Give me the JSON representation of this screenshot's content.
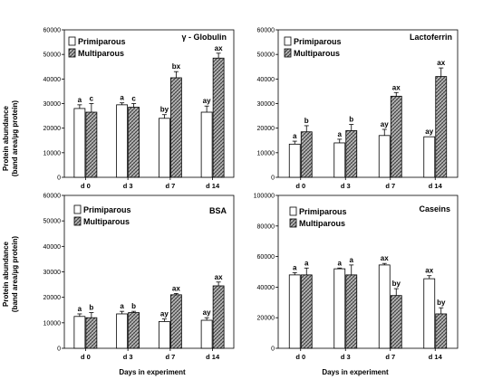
{
  "figure": {
    "ylabel_line1": "Protein abundance",
    "ylabel_line2": "(band area/µg protein)",
    "xlabel": "Days in experiment"
  },
  "chart_data": [
    {
      "type": "bar",
      "title": "γ - Globulin",
      "categories": [
        "d 0",
        "d 3",
        "d 7",
        "d 14"
      ],
      "ylim": [
        0,
        60000
      ],
      "yticks": [
        0,
        10000,
        20000,
        30000,
        40000,
        50000,
        60000
      ],
      "legend": "top-left",
      "series": [
        {
          "name": "Primiparous",
          "values": [
            28000,
            29500,
            24000,
            26500
          ],
          "errors": [
            1500,
            800,
            1500,
            2500
          ],
          "letters": [
            "a",
            "a",
            "by",
            "ay"
          ]
        },
        {
          "name": "Multiparous",
          "values": [
            26500,
            28500,
            40500,
            48500
          ],
          "errors": [
            3500,
            1500,
            2500,
            2000
          ],
          "letters": [
            "c",
            "c",
            "bx",
            "ax"
          ]
        }
      ]
    },
    {
      "type": "bar",
      "title": "Lactoferrin",
      "categories": [
        "d 0",
        "d 3",
        "d 7",
        "d 14"
      ],
      "ylim": [
        0,
        60000
      ],
      "yticks": [
        0,
        10000,
        20000,
        30000,
        40000,
        50000,
        60000
      ],
      "legend": "top-left",
      "series": [
        {
          "name": "Primiparous",
          "values": [
            13500,
            14000,
            17000,
            16500
          ],
          "errors": [
            1200,
            1500,
            2500,
            0
          ],
          "letters": [
            "a",
            "a",
            "ay",
            "ay"
          ]
        },
        {
          "name": "Multiparous",
          "values": [
            18500,
            19000,
            33000,
            41000
          ],
          "errors": [
            2500,
            2500,
            1500,
            3500
          ],
          "letters": [
            "b",
            "b",
            "ax",
            "ax"
          ]
        }
      ]
    },
    {
      "type": "bar",
      "title": "BSA",
      "categories": [
        "d 0",
        "d 3",
        "d 7",
        "d 14"
      ],
      "ylim": [
        0,
        60000
      ],
      "yticks": [
        0,
        10000,
        20000,
        30000,
        40000,
        50000,
        60000
      ],
      "legend": "top-left",
      "series": [
        {
          "name": "Primiparous",
          "values": [
            12500,
            13500,
            10500,
            11000
          ],
          "errors": [
            1000,
            1000,
            1000,
            1000
          ],
          "letters": [
            "a",
            "a",
            "ay",
            "ay"
          ]
        },
        {
          "name": "Multiparous",
          "values": [
            12000,
            14000,
            21000,
            24500
          ],
          "errors": [
            2000,
            500,
            500,
            1500
          ],
          "letters": [
            "b",
            "b",
            "ax",
            "ax"
          ]
        }
      ]
    },
    {
      "type": "bar",
      "title": "Caseins",
      "categories": [
        "d 0",
        "d 3",
        "d 7",
        "d 14"
      ],
      "ylim": [
        0,
        100000
      ],
      "yticks": [
        0,
        20000,
        40000,
        60000,
        80000,
        100000
      ],
      "legend": "top-left",
      "series": [
        {
          "name": "Primiparous",
          "values": [
            48000,
            52000,
            54500,
            45500
          ],
          "errors": [
            1500,
            500,
            1000,
            2000
          ],
          "letters": [
            "a",
            "a",
            "ax",
            "ax"
          ]
        },
        {
          "name": "Multiparous",
          "values": [
            48000,
            48000,
            34500,
            22500
          ],
          "errors": [
            4500,
            6500,
            4500,
            4000
          ],
          "letters": [
            "a",
            "a",
            "by",
            "by"
          ]
        }
      ]
    }
  ]
}
